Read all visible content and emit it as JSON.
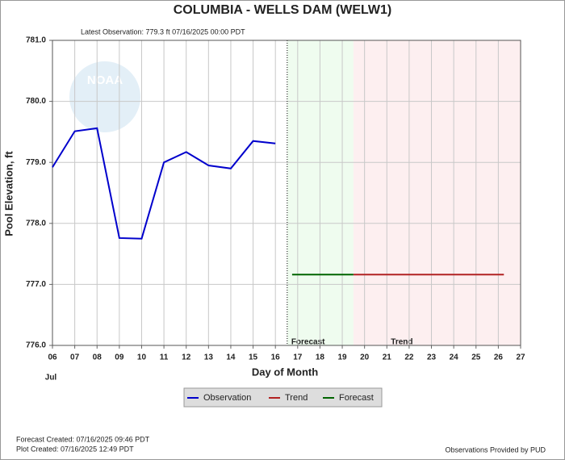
{
  "chart_data": {
    "type": "line",
    "title": "COLUMBIA - WELLS DAM  (WELW1)",
    "subtitle": "Latest Observation: 779.3 ft 07/16/2025 00:00 PDT",
    "y_label": "Pool Elevation, ft",
    "x_label": "Day of Month",
    "x_sublabel": "Jul",
    "watermark": "NOAA",
    "xlim": [
      6,
      27
    ],
    "xticks": [
      {
        "value": 6,
        "label": "06"
      },
      {
        "value": 7,
        "label": "07"
      },
      {
        "value": 8,
        "label": "08"
      },
      {
        "value": 9,
        "label": "09"
      },
      10,
      11,
      12,
      13,
      14,
      15,
      16,
      17,
      18,
      19,
      20,
      21,
      22,
      23,
      24,
      25,
      26,
      27
    ],
    "ylim": [
      776,
      781
    ],
    "yticks": [
      {
        "value": 776,
        "label": "776.0"
      },
      {
        "value": 777,
        "label": "777.0"
      },
      {
        "value": 778,
        "label": "778.0"
      },
      {
        "value": 779,
        "label": "779.0"
      },
      {
        "value": 780,
        "label": "780.0"
      },
      {
        "value": 781,
        "label": "781.0"
      }
    ],
    "grid": true,
    "regions": [
      {
        "label": "Forecast",
        "span": [
          16.53,
          19.5
        ],
        "color": "#effcef"
      },
      {
        "label": "Trend",
        "span": [
          19.5,
          27
        ],
        "color": "#fdeff0"
      }
    ],
    "series": [
      {
        "name": "Observation",
        "color": "#0000cc",
        "x": [
          6,
          7,
          8,
          9,
          10,
          11,
          12,
          13,
          14,
          15,
          16
        ],
        "values": [
          778.92,
          779.51,
          779.56,
          777.76,
          777.75,
          779.0,
          779.17,
          778.95,
          778.9,
          779.35,
          779.31
        ]
      },
      {
        "name": "Trend",
        "color": "#b22222",
        "x": [
          19.5,
          26.25
        ],
        "values": [
          777.16,
          777.16
        ]
      },
      {
        "name": "Forecast",
        "color": "#006400",
        "x": [
          16.75,
          19.5
        ],
        "values": [
          777.16,
          777.16
        ]
      }
    ],
    "footer": {
      "forecast_created": "Forecast Created: 07/16/2025 09:46 PDT",
      "plot_created": "Plot Created: 07/16/2025 12:49 PDT",
      "provider": "Observations Provided by PUD"
    }
  }
}
